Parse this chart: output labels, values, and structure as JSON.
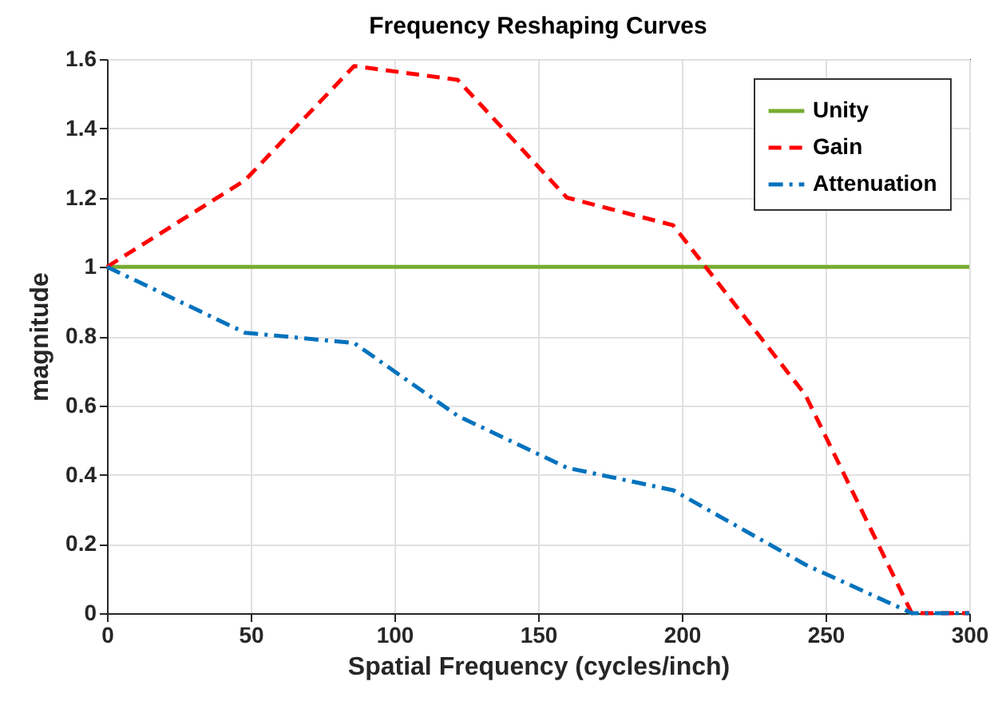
{
  "chart_data": {
    "type": "line",
    "title": "Frequency Reshaping Curves",
    "xlabel": "Spatial Frequency (cycles/inch)",
    "ylabel": "magnitude",
    "xlim": [
      0,
      300
    ],
    "xticks": [
      0,
      50,
      100,
      150,
      200,
      250,
      300
    ],
    "ylim": [
      0,
      1.6
    ],
    "yticks": [
      0,
      0.2,
      0.4,
      0.6,
      0.8,
      1,
      1.2,
      1.4,
      1.6
    ],
    "grid": true,
    "legend": "top right",
    "series": [
      {
        "name": "Unity",
        "color": "#77ac30",
        "line_style": "solid",
        "x": [
          0,
          300
        ],
        "values": [
          1,
          1
        ]
      },
      {
        "name": "Gain",
        "color": "#ff0000",
        "line_style": "dashed",
        "x": [
          0,
          48,
          86,
          122,
          160,
          197,
          243,
          280,
          300
        ],
        "values": [
          1,
          1.25,
          1.58,
          1.54,
          1.2,
          1.12,
          0.63,
          0,
          0
        ]
      },
      {
        "name": "Attenuation",
        "color": "#0072bd",
        "line_style": "dashdot",
        "x": [
          0,
          48,
          86,
          122,
          160,
          197,
          243,
          280,
          300
        ],
        "values": [
          1,
          0.81,
          0.78,
          0.57,
          0.42,
          0.355,
          0.14,
          0,
          0
        ]
      }
    ]
  }
}
